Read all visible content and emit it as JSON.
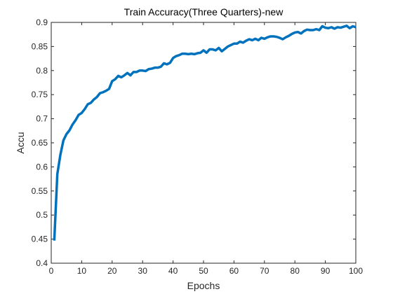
{
  "chart_data": {
    "type": "line",
    "title": "Train Accuracy(Three Quarters)-new",
    "xlabel": "Epochs",
    "ylabel": "Accu",
    "xlim": [
      0,
      100
    ],
    "ylim": [
      0.4,
      0.9
    ],
    "xticks": [
      0,
      10,
      20,
      30,
      40,
      50,
      60,
      70,
      80,
      90,
      100
    ],
    "yticks": [
      0.4,
      0.45,
      0.5,
      0.55,
      0.6,
      0.65,
      0.7,
      0.75,
      0.8,
      0.85,
      0.9
    ],
    "xtick_labels": [
      "0",
      "10",
      "20",
      "30",
      "40",
      "50",
      "60",
      "70",
      "80",
      "90",
      "100"
    ],
    "ytick_labels": [
      "0.4",
      "0.45",
      "0.5",
      "0.55",
      "0.6",
      "0.65",
      "0.7",
      "0.75",
      "0.8",
      "0.85",
      "0.9"
    ],
    "grid": false,
    "line_color": "#0072BD",
    "series": [
      {
        "x": [
          1,
          2,
          3,
          4,
          5,
          6,
          7,
          8,
          9,
          10,
          11,
          12,
          13,
          14,
          15,
          16,
          17,
          18,
          19,
          20,
          21,
          22,
          23,
          24,
          25,
          26,
          27,
          28,
          29,
          30,
          31,
          32,
          33,
          34,
          35,
          36,
          37,
          38,
          39,
          40,
          41,
          42,
          43,
          44,
          45,
          46,
          47,
          48,
          49,
          50,
          51,
          52,
          53,
          54,
          55,
          56,
          57,
          58,
          59,
          60,
          61,
          62,
          63,
          64,
          65,
          66,
          67,
          68,
          69,
          70,
          71,
          72,
          73,
          74,
          75,
          76,
          77,
          78,
          79,
          80,
          81,
          82,
          83,
          84,
          85,
          86,
          87,
          88,
          89,
          90,
          91,
          92,
          93,
          94,
          95,
          96,
          97,
          98,
          99,
          100
        ],
        "y": [
          0.447,
          0.585,
          0.625,
          0.655,
          0.668,
          0.676,
          0.688,
          0.697,
          0.708,
          0.712,
          0.72,
          0.73,
          0.733,
          0.74,
          0.745,
          0.753,
          0.755,
          0.758,
          0.762,
          0.778,
          0.782,
          0.789,
          0.786,
          0.79,
          0.795,
          0.79,
          0.797,
          0.797,
          0.8,
          0.8,
          0.799,
          0.803,
          0.804,
          0.806,
          0.806,
          0.808,
          0.815,
          0.813,
          0.816,
          0.826,
          0.83,
          0.832,
          0.835,
          0.835,
          0.834,
          0.835,
          0.834,
          0.836,
          0.837,
          0.842,
          0.837,
          0.844,
          0.844,
          0.842,
          0.847,
          0.84,
          0.845,
          0.85,
          0.853,
          0.856,
          0.856,
          0.86,
          0.858,
          0.862,
          0.865,
          0.863,
          0.866,
          0.863,
          0.868,
          0.866,
          0.869,
          0.871,
          0.871,
          0.87,
          0.868,
          0.865,
          0.869,
          0.872,
          0.876,
          0.879,
          0.88,
          0.877,
          0.882,
          0.885,
          0.884,
          0.884,
          0.886,
          0.884,
          0.892,
          0.889,
          0.888,
          0.89,
          0.887,
          0.89,
          0.889,
          0.891,
          0.893,
          0.888,
          0.892,
          0.89
        ]
      }
    ]
  }
}
